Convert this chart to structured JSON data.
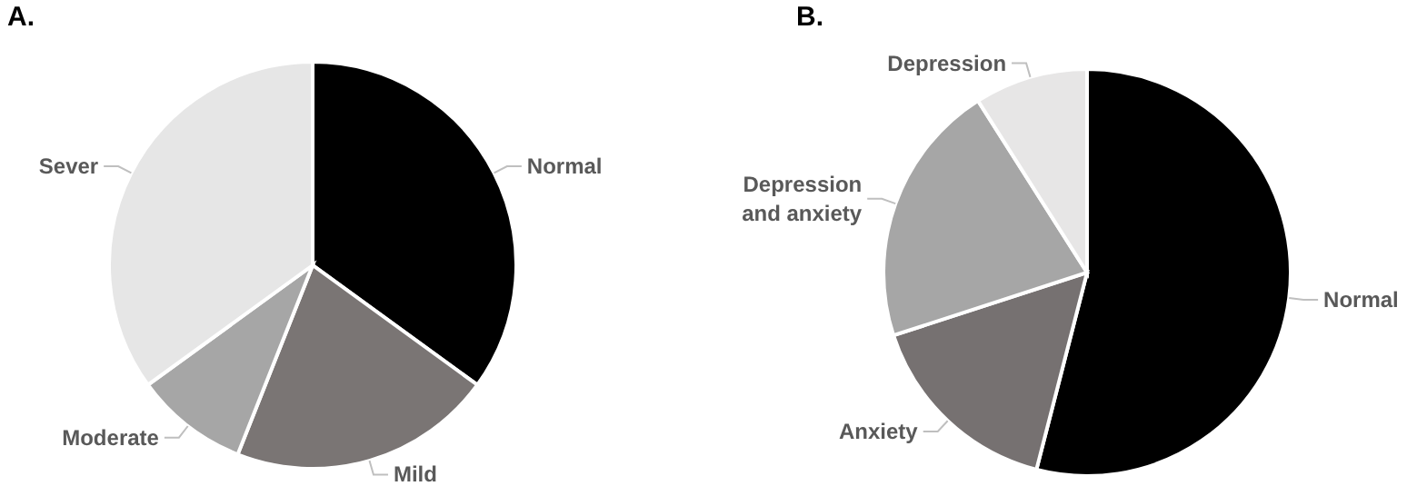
{
  "chart_data": [
    {
      "type": "pie",
      "title": "A.",
      "categories": [
        "Normal",
        "Mild",
        "Moderate",
        "Sever"
      ],
      "values": [
        35,
        21,
        9,
        35
      ],
      "colors": [
        "#000000",
        "#7a7574",
        "#a6a6a6",
        "#e6e6e6"
      ]
    },
    {
      "type": "pie",
      "title": "B.",
      "categories": [
        "Normal",
        "Anxiety",
        "Depression and anxiety",
        "Depression"
      ],
      "values": [
        54,
        16,
        21,
        9
      ],
      "colors": [
        "#000000",
        "#767171",
        "#a6a6a6",
        "#e7e6e6"
      ]
    }
  ]
}
